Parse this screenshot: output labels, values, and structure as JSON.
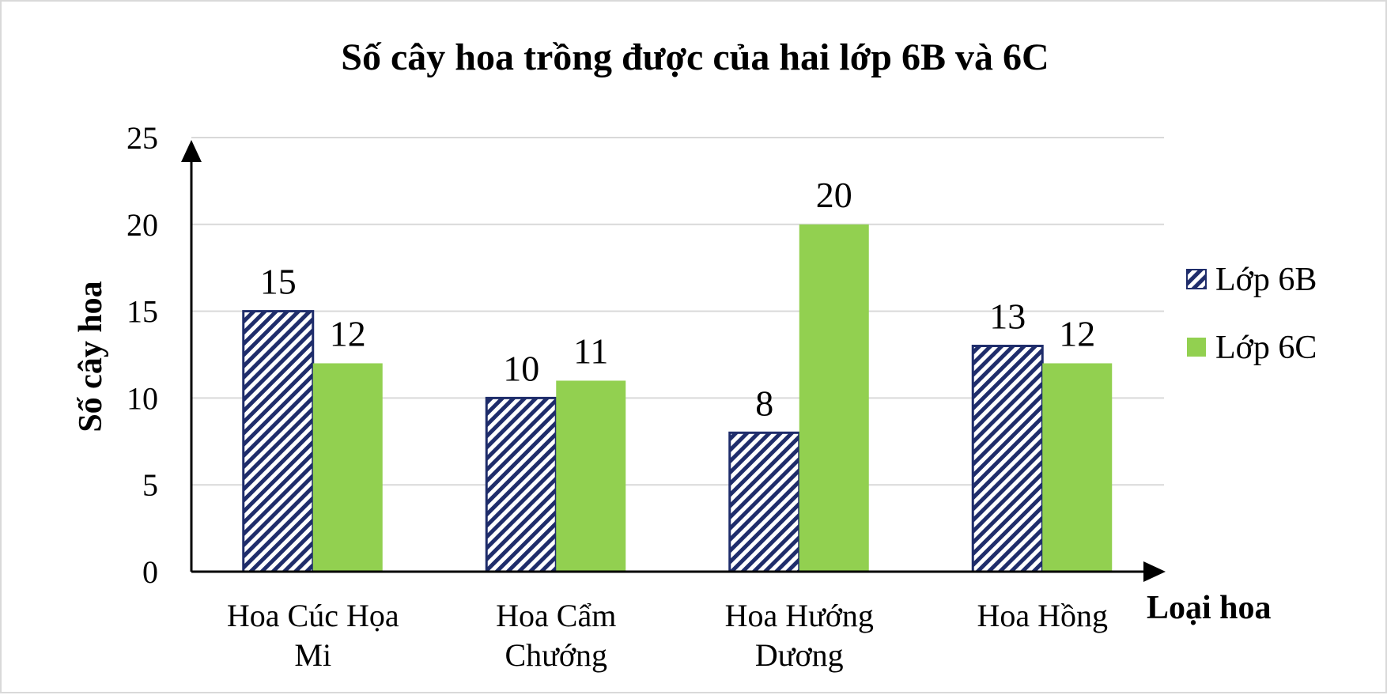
{
  "chart_data": {
    "type": "bar",
    "title": "Số cây hoa trồng được của hai lớp 6B và 6C",
    "xlabel": "Loại hoa",
    "ylabel": "Số cây hoa",
    "categories": [
      [
        "Hoa Cúc Họa",
        "Mi"
      ],
      [
        "Hoa Cẩm",
        "Chướng"
      ],
      [
        "Hoa Hướng",
        "Dương"
      ],
      [
        "Hoa Hồng"
      ]
    ],
    "series": [
      {
        "name": "Lớp 6B",
        "values": [
          15,
          10,
          8,
          13
        ],
        "color": "#1f2d6b",
        "fill": "diagonal-hatch"
      },
      {
        "name": "Lớp 6C",
        "values": [
          12,
          11,
          20,
          12
        ],
        "color": "#92d050",
        "fill": "solid"
      }
    ],
    "ylim": [
      0,
      25
    ],
    "yticks": [
      0,
      5,
      10,
      15,
      20,
      25
    ],
    "grid": true,
    "legend_position": "right"
  }
}
